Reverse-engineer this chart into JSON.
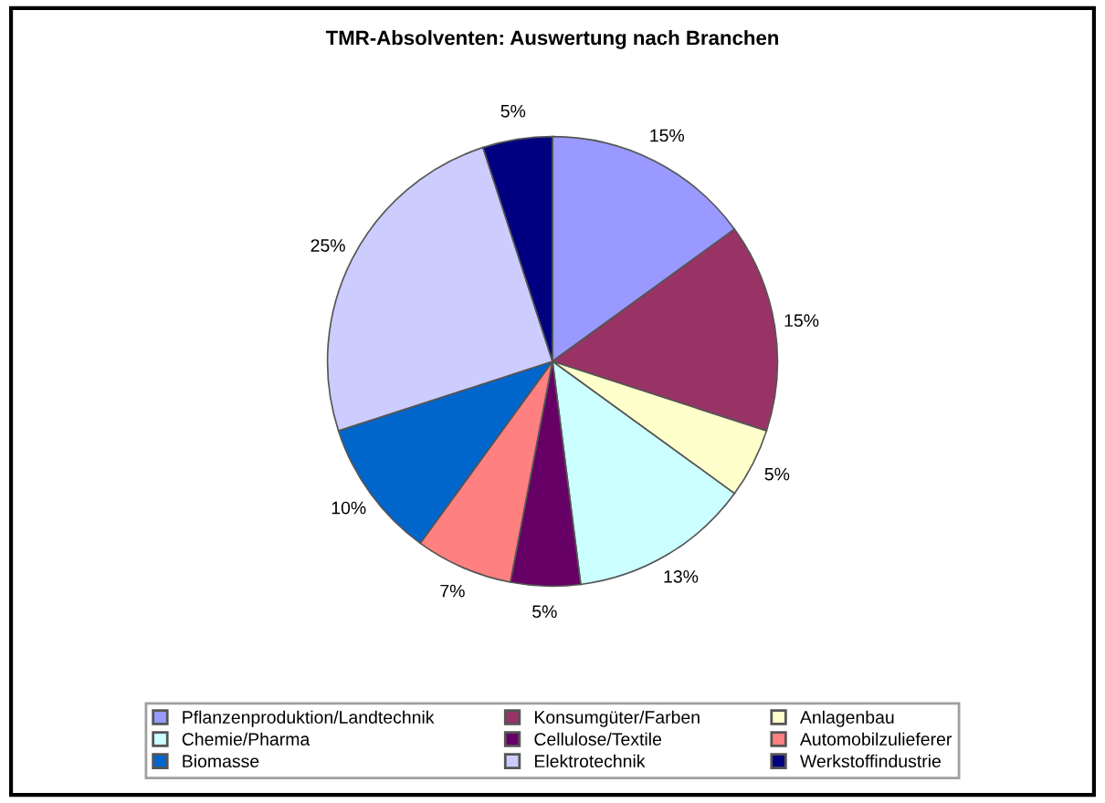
{
  "chart_data": {
    "type": "pie",
    "title": "TMR-Absolventen: Auswertung nach Branchen",
    "categories": [
      "Pflanzenproduktion/Landtechnik",
      "Konsumgüter/Farben",
      "Anlagenbau",
      "Chemie/Pharma",
      "Cellulose/Textile",
      "Automobilzulieferer",
      "Biomasse",
      "Elektrotechnik",
      "Werkstoffindustrie"
    ],
    "values": [
      15,
      15,
      5,
      13,
      5,
      7,
      10,
      25,
      5
    ],
    "value_labels": [
      "15%",
      "15%",
      "5%",
      "13%",
      "5%",
      "7%",
      "10%",
      "25%",
      "5%"
    ],
    "colors": [
      "#9999ff",
      "#993366",
      "#ffffcc",
      "#ccffff",
      "#660066",
      "#ff8080",
      "#0066cc",
      "#ccccff",
      "#000080"
    ],
    "legend": "bottom"
  }
}
